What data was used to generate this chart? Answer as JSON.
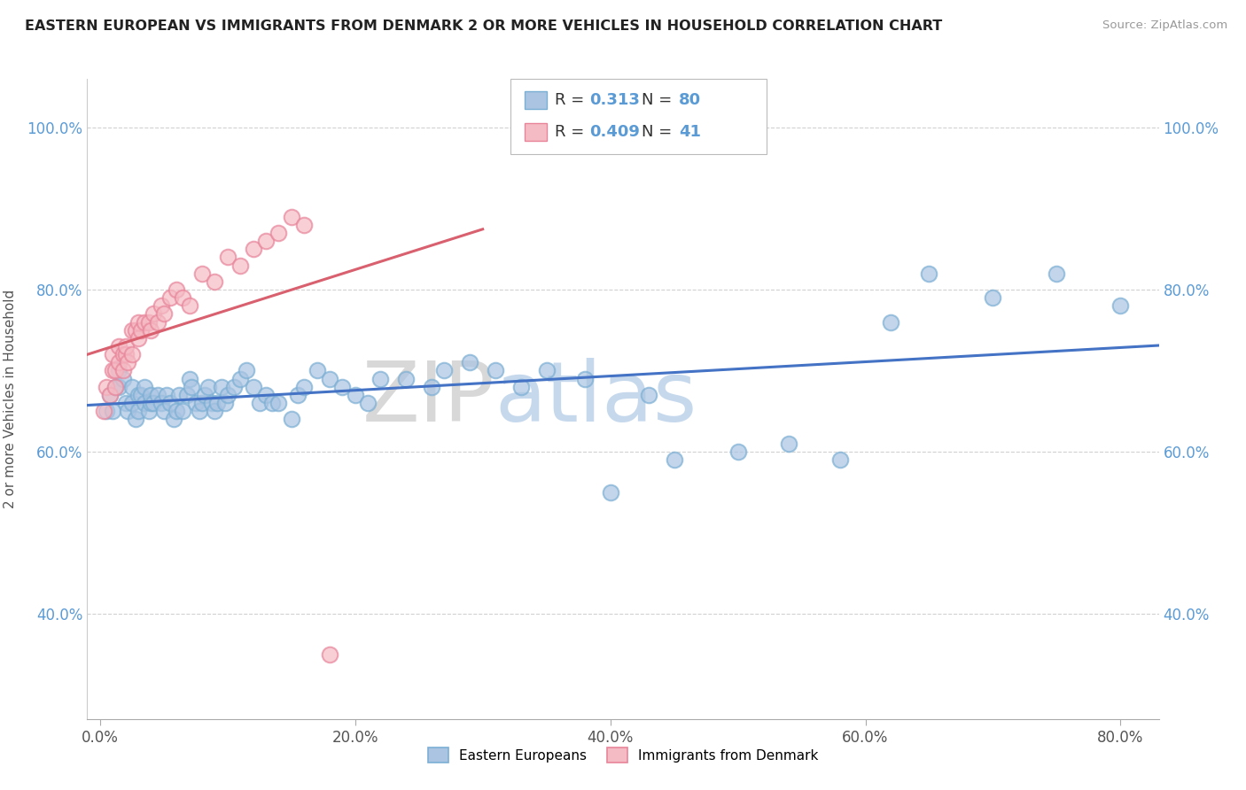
{
  "title": "EASTERN EUROPEAN VS IMMIGRANTS FROM DENMARK 2 OR MORE VEHICLES IN HOUSEHOLD CORRELATION CHART",
  "source": "Source: ZipAtlas.com",
  "ylabel": "2 or more Vehicles in Household",
  "blue_R": 0.313,
  "blue_N": 80,
  "pink_R": 0.409,
  "pink_N": 41,
  "x_ticks": [
    "0.0%",
    "20.0%",
    "40.0%",
    "60.0%",
    "80.0%"
  ],
  "x_tick_vals": [
    0.0,
    0.2,
    0.4,
    0.6,
    0.8
  ],
  "y_ticks": [
    "40.0%",
    "60.0%",
    "80.0%",
    "100.0%"
  ],
  "y_tick_vals": [
    0.4,
    0.6,
    0.8,
    1.0
  ],
  "xlim": [
    -0.01,
    0.83
  ],
  "ylim": [
    0.27,
    1.06
  ],
  "blue_color": "#aac4e2",
  "blue_edge": "#7bafd4",
  "pink_color": "#f5bbc4",
  "pink_edge": "#e8849a",
  "line_blue": "#4472C4",
  "line_pink": "#d9606e",
  "legend_blue_label": "Eastern Europeans",
  "legend_pink_label": "Immigrants from Denmark",
  "watermark_zip": "ZIP",
  "watermark_atlas": "atlas",
  "blue_x": [
    0.005,
    0.008,
    0.01,
    0.012,
    0.015,
    0.015,
    0.018,
    0.02,
    0.022,
    0.025,
    0.025,
    0.028,
    0.03,
    0.03,
    0.032,
    0.035,
    0.035,
    0.038,
    0.04,
    0.04,
    0.042,
    0.045,
    0.048,
    0.05,
    0.052,
    0.055,
    0.058,
    0.06,
    0.062,
    0.065,
    0.068,
    0.07,
    0.072,
    0.075,
    0.078,
    0.08,
    0.082,
    0.085,
    0.088,
    0.09,
    0.092,
    0.095,
    0.098,
    0.1,
    0.105,
    0.11,
    0.115,
    0.12,
    0.125,
    0.13,
    0.135,
    0.14,
    0.15,
    0.155,
    0.16,
    0.17,
    0.18,
    0.19,
    0.2,
    0.21,
    0.22,
    0.24,
    0.26,
    0.27,
    0.29,
    0.31,
    0.33,
    0.35,
    0.38,
    0.4,
    0.43,
    0.45,
    0.5,
    0.54,
    0.58,
    0.62,
    0.65,
    0.7,
    0.75,
    0.8
  ],
  "blue_y": [
    0.65,
    0.67,
    0.65,
    0.68,
    0.68,
    0.7,
    0.69,
    0.66,
    0.65,
    0.66,
    0.68,
    0.64,
    0.65,
    0.67,
    0.67,
    0.66,
    0.68,
    0.65,
    0.66,
    0.67,
    0.66,
    0.67,
    0.66,
    0.65,
    0.67,
    0.66,
    0.64,
    0.65,
    0.67,
    0.65,
    0.67,
    0.69,
    0.68,
    0.66,
    0.65,
    0.66,
    0.67,
    0.68,
    0.66,
    0.65,
    0.66,
    0.68,
    0.66,
    0.67,
    0.68,
    0.69,
    0.7,
    0.68,
    0.66,
    0.67,
    0.66,
    0.66,
    0.64,
    0.67,
    0.68,
    0.7,
    0.69,
    0.68,
    0.67,
    0.66,
    0.69,
    0.69,
    0.68,
    0.7,
    0.71,
    0.7,
    0.68,
    0.7,
    0.69,
    0.55,
    0.67,
    0.59,
    0.6,
    0.61,
    0.59,
    0.76,
    0.82,
    0.79,
    0.82,
    0.78
  ],
  "pink_x": [
    0.003,
    0.005,
    0.008,
    0.01,
    0.01,
    0.012,
    0.012,
    0.015,
    0.015,
    0.018,
    0.018,
    0.02,
    0.02,
    0.022,
    0.025,
    0.025,
    0.028,
    0.03,
    0.03,
    0.032,
    0.035,
    0.038,
    0.04,
    0.042,
    0.045,
    0.048,
    0.05,
    0.055,
    0.06,
    0.065,
    0.07,
    0.08,
    0.09,
    0.1,
    0.11,
    0.12,
    0.13,
    0.14,
    0.15,
    0.16,
    0.18
  ],
  "pink_y": [
    0.65,
    0.68,
    0.67,
    0.7,
    0.72,
    0.68,
    0.7,
    0.71,
    0.73,
    0.72,
    0.7,
    0.72,
    0.73,
    0.71,
    0.72,
    0.75,
    0.75,
    0.74,
    0.76,
    0.75,
    0.76,
    0.76,
    0.75,
    0.77,
    0.76,
    0.78,
    0.77,
    0.79,
    0.8,
    0.79,
    0.78,
    0.82,
    0.81,
    0.84,
    0.83,
    0.85,
    0.86,
    0.87,
    0.89,
    0.88,
    0.35
  ]
}
